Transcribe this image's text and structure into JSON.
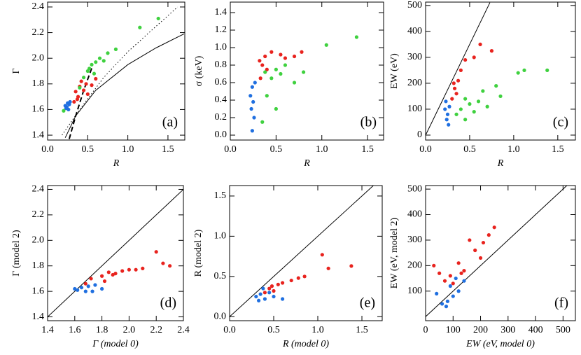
{
  "chart_data": [
    {
      "type": "scatter",
      "label": "(a)",
      "xlabel": "R",
      "ylabel": "Γ",
      "xlim": [
        0,
        1.71
      ],
      "ylim": [
        1.362,
        2.438
      ],
      "xticks": [
        {
          "value": 0,
          "label": "0.0"
        },
        0.5,
        {
          "value": 1,
          "label": "1.0"
        },
        1.5
      ],
      "yticks": [
        1.4,
        1.6,
        1.8,
        {
          "value": 2,
          "label": "2.0"
        },
        2.2,
        2.4
      ],
      "series": [
        {
          "color": "#1f6fe0",
          "x": [
            0.22,
            0.24,
            0.25,
            0.27,
            0.23,
            0.28,
            0.26
          ],
          "values": [
            1.63,
            1.62,
            1.65,
            1.64,
            1.61,
            1.66,
            1.6
          ]
        },
        {
          "color": "#e8231e",
          "x": [
            0.33,
            0.38,
            0.35,
            0.4,
            0.45,
            0.48,
            0.55,
            0.5,
            0.42,
            0.6,
            0.37
          ],
          "values": [
            1.66,
            1.7,
            1.74,
            1.78,
            1.75,
            1.8,
            1.79,
            1.72,
            1.82,
            1.84,
            1.68
          ]
        },
        {
          "color": "#3fd13f",
          "x": [
            0.2,
            0.45,
            0.5,
            0.55,
            0.6,
            0.65,
            0.75,
            0.85,
            1.15,
            1.38,
            0.7,
            0.58,
            0.4,
            0.52
          ],
          "values": [
            1.59,
            1.85,
            1.9,
            1.95,
            1.97,
            2.0,
            2.04,
            2.07,
            2.24,
            2.31,
            1.98,
            1.88,
            1.77,
            1.92
          ]
        }
      ],
      "lines": [
        {
          "style": "dotted",
          "x": [
            0.18,
            0.4,
            0.7,
            1.0,
            1.3,
            1.62
          ],
          "values": [
            1.4,
            1.6,
            1.85,
            2.05,
            2.22,
            2.4
          ]
        },
        {
          "style": "solid",
          "x": [
            0.22,
            0.35,
            0.6,
            1.0,
            1.35,
            1.7
          ],
          "values": [
            1.38,
            1.55,
            1.75,
            1.95,
            2.08,
            2.19
          ]
        },
        {
          "style": "dashed",
          "x": [
            0.27,
            0.35,
            0.45,
            0.56
          ],
          "values": [
            1.37,
            1.55,
            1.75,
            1.94
          ]
        }
      ]
    },
    {
      "type": "scatter",
      "label": "(b)",
      "xlabel": "R",
      "ylabel": "σ (keV)",
      "xlim": [
        0,
        1.675
      ],
      "ylim": [
        -0.056,
        1.52
      ],
      "xticks": [
        {
          "value": 0,
          "label": "0.0"
        },
        0.5,
        {
          "value": 1,
          "label": "1.0"
        },
        1.5
      ],
      "yticks": [
        {
          "value": 0,
          "label": "0.0"
        },
        0.2,
        0.4,
        0.6,
        0.8,
        {
          "value": 1,
          "label": "1.0"
        },
        1.2,
        1.4
      ],
      "series": [
        {
          "color": "#1f6fe0",
          "x": [
            0.22,
            0.23,
            0.24,
            0.25,
            0.26,
            0.27,
            0.24
          ],
          "values": [
            0.45,
            0.3,
            0.55,
            0.38,
            0.2,
            0.6,
            0.05
          ]
        },
        {
          "color": "#e8231e",
          "x": [
            0.32,
            0.35,
            0.38,
            0.4,
            0.45,
            0.55,
            0.6,
            0.7,
            0.78,
            0.33
          ],
          "values": [
            0.85,
            0.8,
            0.9,
            0.75,
            0.95,
            0.92,
            0.88,
            0.9,
            0.95,
            0.65
          ]
        },
        {
          "color": "#3fd13f",
          "x": [
            0.35,
            0.4,
            0.45,
            0.5,
            0.55,
            0.6,
            0.7,
            0.8,
            1.05,
            1.38,
            0.5,
            0.38
          ],
          "values": [
            0.15,
            0.45,
            0.65,
            0.75,
            0.7,
            0.8,
            0.6,
            0.72,
            1.03,
            1.12,
            0.3,
            0.72
          ]
        }
      ],
      "lines": []
    },
    {
      "type": "scatter",
      "label": "(c)",
      "xlabel": "R",
      "ylabel": "EW (eV)",
      "xlim": [
        0,
        1.7
      ],
      "ylim": [
        -19,
        513
      ],
      "xticks": [
        {
          "value": 0,
          "label": "0.0"
        },
        0.5,
        {
          "value": 1,
          "label": "1.0"
        },
        1.5
      ],
      "yticks": [
        0,
        100,
        200,
        300,
        400,
        500
      ],
      "series": [
        {
          "color": "#1f6fe0",
          "x": [
            0.22,
            0.24,
            0.25,
            0.26,
            0.27,
            0.23
          ],
          "values": [
            100,
            60,
            80,
            40,
            110,
            130
          ]
        },
        {
          "color": "#e8231e",
          "x": [
            0.3,
            0.33,
            0.35,
            0.37,
            0.4,
            0.45,
            0.55,
            0.62,
            0.75,
            0.32
          ],
          "values": [
            140,
            180,
            160,
            210,
            250,
            290,
            300,
            350,
            325,
            200
          ]
        },
        {
          "color": "#3fd13f",
          "x": [
            0.35,
            0.4,
            0.45,
            0.5,
            0.55,
            0.6,
            0.7,
            0.8,
            1.05,
            1.12,
            1.38,
            0.45,
            0.65,
            0.85
          ],
          "values": [
            80,
            100,
            140,
            120,
            90,
            130,
            110,
            190,
            240,
            250,
            250,
            60,
            170,
            150
          ]
        }
      ],
      "lines": [
        {
          "style": "solid",
          "x": [
            0,
            0.73
          ],
          "values": [
            0,
            511
          ]
        }
      ]
    },
    {
      "type": "scatter",
      "label": "(d)",
      "xlabel": "Γ (model 0)",
      "ylabel": "Γ (model 2)",
      "xlim": [
        1.4,
        2.4
      ],
      "ylim": [
        1.37,
        2.43
      ],
      "xticks": [
        1.4,
        1.6,
        1.8,
        {
          "value": 2,
          "label": "2.0"
        },
        2.2,
        2.4
      ],
      "yticks": [
        1.4,
        1.6,
        1.8,
        {
          "value": 2,
          "label": "2.0"
        },
        2.2,
        2.4
      ],
      "series": [
        {
          "color": "#1f6fe0",
          "x": [
            1.6,
            1.65,
            1.68,
            1.7,
            1.75,
            1.8,
            1.73,
            1.62
          ],
          "values": [
            1.62,
            1.63,
            1.6,
            1.64,
            1.65,
            1.62,
            1.6,
            1.61
          ]
        },
        {
          "color": "#e8231e",
          "x": [
            1.68,
            1.72,
            1.8,
            1.85,
            1.9,
            1.95,
            2.0,
            2.05,
            2.1,
            2.2,
            2.25,
            2.3,
            1.88,
            1.82
          ],
          "values": [
            1.66,
            1.7,
            1.72,
            1.75,
            1.74,
            1.76,
            1.77,
            1.77,
            1.78,
            1.91,
            1.82,
            1.8,
            1.73,
            1.68
          ]
        }
      ],
      "lines": [
        {
          "style": "solid",
          "x": [
            1.4,
            2.4
          ],
          "values": [
            1.4,
            2.4
          ]
        }
      ]
    },
    {
      "type": "scatter",
      "label": "(e)",
      "xlabel": "R (model 0)",
      "ylabel": "R (model 2)",
      "xlim": [
        0,
        1.73
      ],
      "ylim": [
        -0.05,
        1.63
      ],
      "xticks": [
        {
          "value": 0,
          "label": "0.0"
        },
        0.5,
        {
          "value": 1,
          "label": "1.0"
        },
        1.5
      ],
      "yticks": [
        {
          "value": 0,
          "label": "0.0"
        },
        0.5,
        {
          "value": 1,
          "label": "1.0"
        },
        1.5
      ],
      "series": [
        {
          "color": "#1f6fe0",
          "x": [
            0.3,
            0.35,
            0.4,
            0.45,
            0.5,
            0.6,
            0.38,
            0.33
          ],
          "values": [
            0.25,
            0.28,
            0.22,
            0.3,
            0.25,
            0.22,
            0.35,
            0.2
          ]
        },
        {
          "color": "#e8231e",
          "x": [
            0.4,
            0.45,
            0.5,
            0.55,
            0.6,
            0.7,
            0.78,
            0.85,
            1.05,
            1.12,
            1.38,
            0.48
          ],
          "values": [
            0.3,
            0.35,
            0.32,
            0.4,
            0.42,
            0.45,
            0.48,
            0.5,
            0.77,
            0.6,
            0.63,
            0.38
          ]
        }
      ],
      "lines": [
        {
          "style": "solid",
          "x": [
            0,
            1.63
          ],
          "values": [
            0,
            1.63
          ]
        }
      ]
    },
    {
      "type": "scatter",
      "label": "(f)",
      "xlabel": "EW  (eV, model 0)",
      "ylabel": "EW (eV, model 2)",
      "xlim": [
        0,
        545
      ],
      "ylim": [
        -16,
        514
      ],
      "xticks": [
        0,
        100,
        200,
        300,
        400,
        500
      ],
      "yticks": [
        100,
        200,
        300,
        400,
        500
      ],
      "series": [
        {
          "color": "#1f6fe0",
          "x": [
            40,
            60,
            75,
            90,
            100,
            120,
            140,
            80,
            110
          ],
          "values": [
            90,
            50,
            40,
            120,
            80,
            100,
            140,
            60,
            150
          ]
        },
        {
          "color": "#e8231e",
          "x": [
            30,
            50,
            70,
            90,
            100,
            120,
            140,
            160,
            180,
            200,
            230,
            250,
            210,
            130
          ],
          "values": [
            200,
            170,
            140,
            160,
            130,
            210,
            180,
            300,
            260,
            230,
            320,
            350,
            290,
            170
          ]
        }
      ],
      "lines": [
        {
          "style": "solid",
          "x": [
            0,
            514
          ],
          "values": [
            0,
            514
          ]
        }
      ]
    }
  ]
}
